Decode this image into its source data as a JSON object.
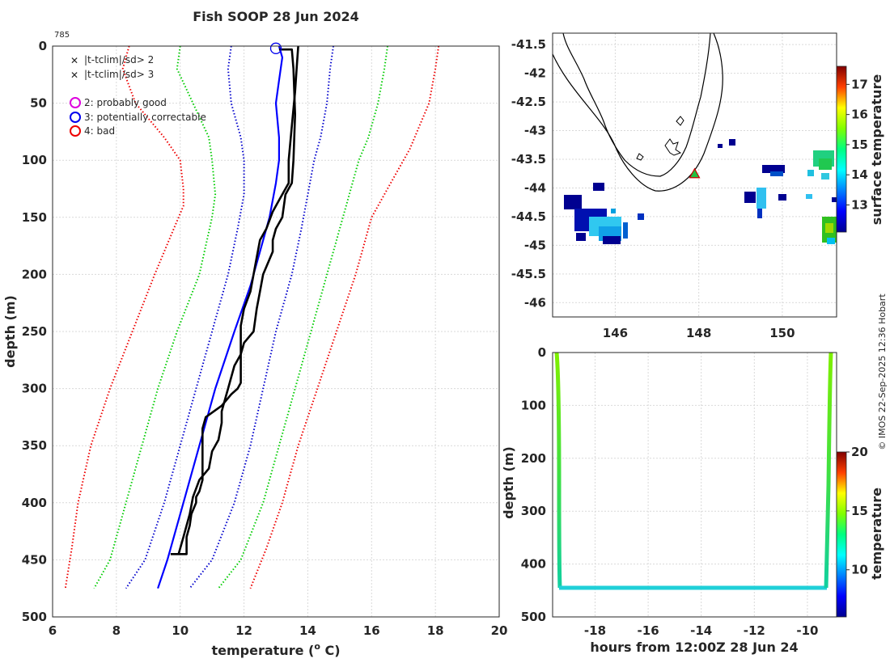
{
  "chart_data": [
    {
      "type": "line",
      "name": "profile",
      "title": "Fish SOOP 28 Jun 2024",
      "annotation": "785",
      "xlabel": "temperature (",
      "xlabel_sup": "o",
      "xlabel_tail": " C)",
      "ylabel": "depth (m)",
      "xlim": [
        6,
        20
      ],
      "ylim": [
        500,
        0
      ],
      "xticks": [
        6,
        8,
        10,
        12,
        14,
        16,
        18,
        20
      ],
      "yticks": [
        0,
        50,
        100,
        150,
        200,
        250,
        300,
        350,
        400,
        450,
        500
      ],
      "grid": true,
      "legend": {
        "placement": "top-left",
        "items": [
          {
            "marker": "x",
            "color": "#00dd00",
            "label": "|t-tclim|/sd> 2"
          },
          {
            "marker": "x",
            "color": "#ee0000",
            "label": "|t-tclim|/sd> 3"
          },
          {
            "marker": "o",
            "color": "#dd00dd",
            "label": "2: probably good"
          },
          {
            "marker": "o",
            "color": "#0000ee",
            "label": "3: potentially correctable"
          },
          {
            "marker": "o",
            "color": "#ee0000",
            "label": "4: bad"
          }
        ]
      },
      "series": [
        {
          "name": "clim -3sd",
          "color": "#ee0000",
          "style": "dotted",
          "points": [
            [
              8.4,
              0
            ],
            [
              8.2,
              20
            ],
            [
              8.6,
              50
            ],
            [
              9.5,
              80
            ],
            [
              10.0,
              100
            ],
            [
              10.1,
              125
            ],
            [
              10.1,
              140
            ],
            [
              9.8,
              160
            ],
            [
              9.2,
              200
            ],
            [
              8.5,
              250
            ],
            [
              7.8,
              300
            ],
            [
              7.2,
              350
            ],
            [
              6.8,
              400
            ],
            [
              6.6,
              440
            ],
            [
              6.4,
              475
            ]
          ]
        },
        {
          "name": "clim -2sd",
          "color": "#00cc00",
          "style": "dotted",
          "points": [
            [
              10.0,
              0
            ],
            [
              9.9,
              20
            ],
            [
              10.4,
              50
            ],
            [
              10.9,
              80
            ],
            [
              11.0,
              100
            ],
            [
              11.1,
              130
            ],
            [
              11.0,
              150
            ],
            [
              10.6,
              200
            ],
            [
              9.9,
              250
            ],
            [
              9.3,
              300
            ],
            [
              8.8,
              350
            ],
            [
              8.3,
              400
            ],
            [
              7.8,
              450
            ],
            [
              7.3,
              475
            ]
          ]
        },
        {
          "name": "clim -1sd",
          "color": "#0000cc",
          "style": "dotted",
          "points": [
            [
              11.6,
              0
            ],
            [
              11.5,
              20
            ],
            [
              11.6,
              50
            ],
            [
              11.9,
              80
            ],
            [
              12.0,
              100
            ],
            [
              12.0,
              130
            ],
            [
              11.8,
              160
            ],
            [
              11.5,
              200
            ],
            [
              11.0,
              250
            ],
            [
              10.5,
              300
            ],
            [
              10.0,
              350
            ],
            [
              9.5,
              400
            ],
            [
              8.9,
              450
            ],
            [
              8.3,
              475
            ]
          ]
        },
        {
          "name": "clim +1sd",
          "color": "#0000cc",
          "style": "dotted",
          "points": [
            [
              14.8,
              0
            ],
            [
              14.7,
              20
            ],
            [
              14.6,
              50
            ],
            [
              14.4,
              80
            ],
            [
              14.2,
              100
            ],
            [
              14.0,
              130
            ],
            [
              13.8,
              160
            ],
            [
              13.5,
              200
            ],
            [
              13.0,
              250
            ],
            [
              12.6,
              300
            ],
            [
              12.2,
              350
            ],
            [
              11.7,
              400
            ],
            [
              11.0,
              450
            ],
            [
              10.3,
              475
            ]
          ]
        },
        {
          "name": "clim +2sd",
          "color": "#00cc00",
          "style": "dotted",
          "points": [
            [
              16.5,
              0
            ],
            [
              16.4,
              20
            ],
            [
              16.2,
              50
            ],
            [
              15.9,
              80
            ],
            [
              15.6,
              100
            ],
            [
              15.3,
              130
            ],
            [
              15.0,
              160
            ],
            [
              14.6,
              200
            ],
            [
              14.1,
              250
            ],
            [
              13.6,
              300
            ],
            [
              13.1,
              350
            ],
            [
              12.6,
              400
            ],
            [
              11.9,
              450
            ],
            [
              11.2,
              475
            ]
          ]
        },
        {
          "name": "clim +3sd",
          "color": "#ee0000",
          "style": "dotted",
          "points": [
            [
              18.1,
              0
            ],
            [
              18.0,
              20
            ],
            [
              17.8,
              50
            ],
            [
              17.5,
              70
            ],
            [
              17.2,
              90
            ],
            [
              16.6,
              120
            ],
            [
              16.0,
              150
            ],
            [
              15.5,
              200
            ],
            [
              14.9,
              250
            ],
            [
              14.3,
              300
            ],
            [
              13.7,
              350
            ],
            [
              13.2,
              400
            ],
            [
              12.7,
              440
            ],
            [
              12.2,
              475
            ]
          ]
        },
        {
          "name": "clim mean",
          "color": "#0000ff",
          "style": "solid",
          "points": [
            [
              13.1,
              0
            ],
            [
              13.2,
              10
            ],
            [
              13.1,
              30
            ],
            [
              13.0,
              50
            ],
            [
              13.1,
              80
            ],
            [
              13.1,
              100
            ],
            [
              13.0,
              120
            ],
            [
              12.8,
              150
            ],
            [
              12.5,
              180
            ],
            [
              12.2,
              210
            ],
            [
              11.7,
              250
            ],
            [
              11.1,
              300
            ],
            [
              10.6,
              350
            ],
            [
              10.1,
              400
            ],
            [
              9.6,
              450
            ],
            [
              9.3,
              475
            ]
          ]
        },
        {
          "name": "observed A",
          "color": "#000000",
          "style": "solid",
          "width": 2.6,
          "points": [
            [
              13.1,
              3
            ],
            [
              13.5,
              3
            ],
            [
              13.55,
              20
            ],
            [
              13.6,
              60
            ],
            [
              13.55,
              100
            ],
            [
              13.5,
              120
            ],
            [
              13.3,
              130
            ],
            [
              13.2,
              150
            ],
            [
              13.0,
              160
            ],
            [
              12.9,
              170
            ],
            [
              12.9,
              180
            ],
            [
              12.6,
              200
            ],
            [
              12.5,
              215
            ],
            [
              12.4,
              230
            ],
            [
              12.3,
              250
            ],
            [
              12.0,
              260
            ],
            [
              11.9,
              270
            ],
            [
              11.7,
              280
            ],
            [
              11.6,
              290
            ],
            [
              11.5,
              300
            ],
            [
              11.4,
              310
            ],
            [
              11.3,
              320
            ],
            [
              11.3,
              330
            ],
            [
              11.2,
              345
            ],
            [
              11.0,
              355
            ],
            [
              10.9,
              370
            ],
            [
              10.6,
              380
            ],
            [
              10.4,
              395
            ],
            [
              10.3,
              410
            ],
            [
              10.2,
              420
            ],
            [
              10.1,
              430
            ],
            [
              10.0,
              440
            ],
            [
              9.95,
              445
            ]
          ]
        },
        {
          "name": "observed B",
          "color": "#000000",
          "style": "solid",
          "width": 2.6,
          "points": [
            [
              13.7,
              0
            ],
            [
              13.65,
              20
            ],
            [
              13.6,
              40
            ],
            [
              13.5,
              70
            ],
            [
              13.4,
              100
            ],
            [
              13.4,
              120
            ],
            [
              13.3,
              125
            ],
            [
              13.1,
              135
            ],
            [
              12.9,
              145
            ],
            [
              12.7,
              160
            ],
            [
              12.5,
              170
            ],
            [
              12.4,
              185
            ],
            [
              12.3,
              200
            ],
            [
              12.2,
              215
            ],
            [
              12.0,
              230
            ],
            [
              11.9,
              245
            ],
            [
              11.9,
              260
            ],
            [
              11.9,
              280
            ],
            [
              11.9,
              295
            ],
            [
              11.8,
              300
            ],
            [
              11.6,
              305
            ],
            [
              11.3,
              315
            ],
            [
              10.8,
              325
            ],
            [
              10.7,
              335
            ],
            [
              10.7,
              350
            ],
            [
              10.7,
              365
            ],
            [
              10.7,
              380
            ],
            [
              10.6,
              390
            ],
            [
              10.5,
              395
            ],
            [
              10.5,
              400
            ],
            [
              10.35,
              410
            ],
            [
              10.3,
              420
            ],
            [
              10.2,
              430
            ],
            [
              10.2,
              440
            ],
            [
              10.2,
              445
            ],
            [
              9.7,
              445
            ]
          ]
        }
      ],
      "flag_marker": {
        "x": 13.0,
        "y": 2,
        "color": "#0000ee"
      }
    },
    {
      "type": "heatmap",
      "name": "map",
      "xlim": [
        144.5,
        151.3
      ],
      "ylim": [
        -46.25,
        -41.3
      ],
      "xticks": [
        146,
        148,
        150
      ],
      "yticks": [
        -41.5,
        -42,
        -42.5,
        -43,
        -43.5,
        -44,
        -44.5,
        -45,
        -45.5,
        -46
      ],
      "colorbar_label": "surface temperature",
      "colorbar_range": [
        12.1,
        17.6
      ],
      "colorbar_ticks": [
        13,
        14,
        15,
        16,
        17
      ],
      "station": {
        "lon": 147.9,
        "lat": -43.75
      },
      "grid": true
    },
    {
      "type": "scatter",
      "name": "section",
      "xlabel": "hours from 12:00Z 28 Jun 24",
      "ylabel": "depth (m)",
      "xlim": [
        -19.6,
        -8.9
      ],
      "ylim": [
        500,
        0
      ],
      "xticks": [
        -18,
        -16,
        -14,
        -12,
        -10
      ],
      "yticks": [
        0,
        100,
        200,
        300,
        400,
        500
      ],
      "colorbar_label": "temperature",
      "colorbar_range": [
        6,
        20
      ],
      "colorbar_ticks": [
        10,
        15,
        20
      ],
      "grid": true
    }
  ],
  "credit": "© IMOS 22-Sep-2025 12:36 Hobart"
}
